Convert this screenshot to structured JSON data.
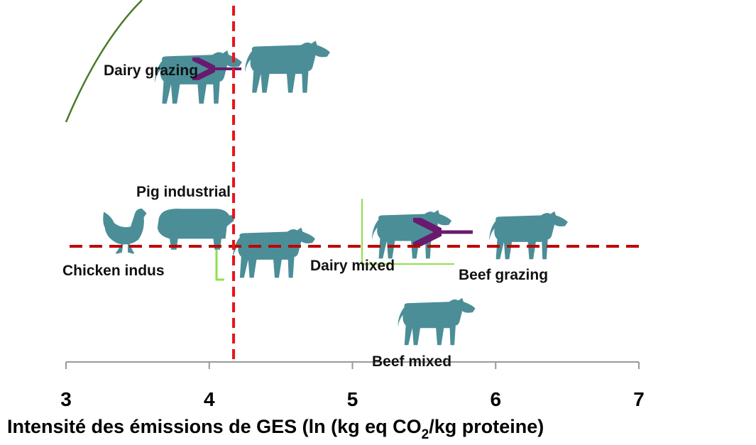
{
  "chart_data": {
    "type": "annotated-axis",
    "xlabel": [
      "Intensité des émissions de GES (ln (kg eq CO",
      "2",
      "/kg proteine)"
    ],
    "xlim": [
      3,
      7
    ],
    "xticks": [
      3,
      4,
      5,
      6,
      7
    ],
    "reference_x": 4.17,
    "reference_color": "#e8141a",
    "hline_color": "#c00000",
    "annotations": [
      "Dairy grazing",
      "Pig industrial",
      "Chicken indus",
      "Dairy mixed",
      "Beef  grazing",
      "Beef mixed"
    ]
  }
}
